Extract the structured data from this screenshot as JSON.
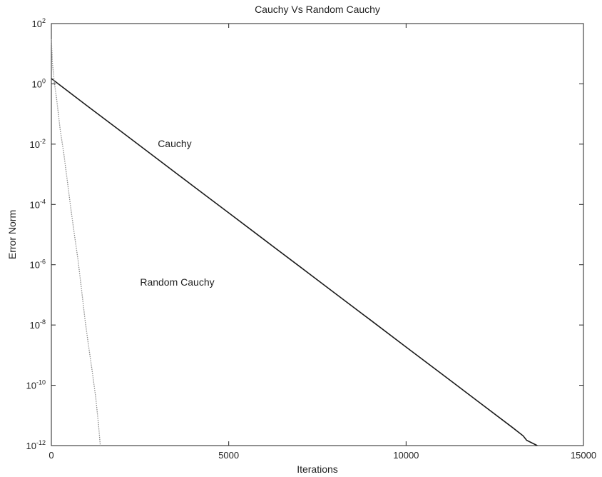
{
  "chart_data": {
    "type": "line",
    "title": "Cauchy Vs Random Cauchy",
    "xlabel": "Iterations",
    "ylabel": "Error Norm",
    "xlim": [
      0,
      15000
    ],
    "ylim": [
      1e-12,
      100
    ],
    "yscale": "log",
    "grid": false,
    "x_ticks": [
      {
        "value": 0,
        "label": "0"
      },
      {
        "value": 5000,
        "label": "5000"
      },
      {
        "value": 10000,
        "label": "10000"
      },
      {
        "value": 15000,
        "label": "15000"
      }
    ],
    "y_ticks": [
      {
        "value": 1e-12,
        "base": "10",
        "exp": "-12"
      },
      {
        "value": 1e-10,
        "base": "10",
        "exp": "-10"
      },
      {
        "value": 1e-08,
        "base": "10",
        "exp": "-8"
      },
      {
        "value": 1e-06,
        "base": "10",
        "exp": "-6"
      },
      {
        "value": 0.0001,
        "base": "10",
        "exp": "-4"
      },
      {
        "value": 0.01,
        "base": "10",
        "exp": "-2"
      },
      {
        "value": 1,
        "base": "10",
        "exp": "0"
      },
      {
        "value": 100,
        "base": "10",
        "exp": "2"
      }
    ],
    "series": [
      {
        "name": "Cauchy",
        "color": "#1a1a1a",
        "style": "solid",
        "x": [
          0,
          1000,
          2000,
          3000,
          4000,
          5000,
          6000,
          7000,
          8000,
          9000,
          10000,
          11000,
          12000,
          13000,
          13300,
          13400,
          13700
        ],
        "y": [
          1.5,
          0.19,
          0.0245,
          0.00316,
          0.000407,
          5.25e-05,
          6.76e-06,
          8.71e-07,
          1.12e-07,
          1.45e-08,
          1.86e-09,
          2.4e-10,
          3.09e-11,
          3.98e-12,
          2.1e-12,
          1.5e-12,
          1e-12
        ]
      },
      {
        "name": "Random Cauchy",
        "color": "#8a8a8a",
        "style": "dotted",
        "x": [
          0,
          30,
          80,
          150,
          250,
          350,
          450,
          550,
          650,
          750,
          850,
          950,
          1050,
          1150,
          1250,
          1330,
          1380
        ],
        "y": [
          30,
          5,
          1.2,
          0.3,
          0.03,
          0.005,
          0.0006,
          7e-05,
          1e-05,
          1.5e-06,
          1.5e-07,
          1.5e-08,
          2e-09,
          3e-10,
          4e-11,
          5e-12,
          1e-12
        ]
      }
    ],
    "annotations": [
      {
        "text": "Cauchy",
        "x": 3000,
        "y": 0.008
      },
      {
        "text": "Random Cauchy",
        "x": 2500,
        "y": 2e-07
      }
    ]
  }
}
